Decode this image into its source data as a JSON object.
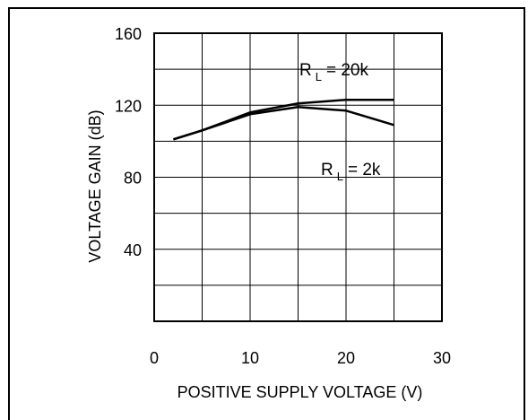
{
  "chart_data": {
    "type": "line",
    "title": "",
    "xlabel": "POSITIVE SUPPLY VOLTAGE (V)",
    "ylabel": "VOLTAGE GAIN (dB)",
    "xlim": [
      0,
      30
    ],
    "ylim": [
      0,
      160
    ],
    "xticks": [
      "0",
      "10",
      "20",
      "30"
    ],
    "yticks": [
      "40",
      "80",
      "120",
      "160"
    ],
    "grid": true,
    "series": [
      {
        "name": "R L = 20k",
        "name_main": "R",
        "name_sub": "L",
        "name_value": "= 20k",
        "x": [
          2,
          5,
          10,
          15,
          20,
          25
        ],
        "y": [
          101,
          106,
          116,
          121,
          123,
          123
        ]
      },
      {
        "name": "R L = 2k",
        "name_main": "R",
        "name_sub": "L",
        "name_value": "= 2k",
        "x": [
          2,
          5,
          10,
          15,
          20,
          25
        ],
        "y": [
          101,
          106,
          115,
          119,
          117,
          109
        ]
      }
    ]
  }
}
